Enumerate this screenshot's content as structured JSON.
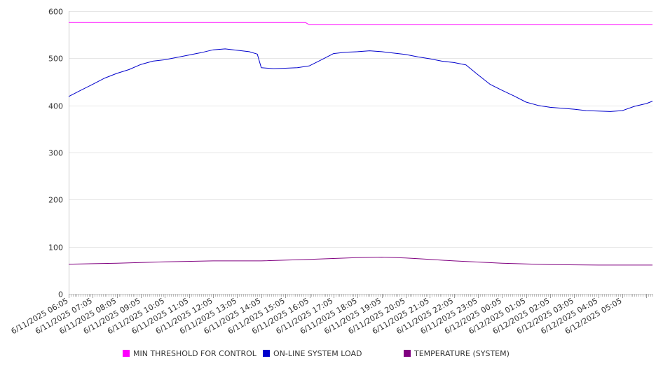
{
  "chart_data": {
    "type": "line",
    "title": "",
    "xlabel": "",
    "ylabel": "",
    "ylim": [
      0,
      600
    ],
    "yticks": [
      0,
      100,
      200,
      300,
      400,
      500,
      600
    ],
    "grid": true,
    "legend_position": "bottom",
    "x_tick_labels": [
      "6/11/2025 06:05",
      "6/11/2025 07:05",
      "6/11/2025 08:05",
      "6/11/2025 09:05",
      "6/11/2025 10:05",
      "6/11/2025 11:05",
      "6/11/2025 12:05",
      "6/11/2025 13:05",
      "6/11/2025 14:05",
      "6/11/2025 15:05",
      "6/11/2025 16:05",
      "6/11/2025 17:05",
      "6/11/2025 18:05",
      "6/11/2025 19:05",
      "6/11/2025 20:05",
      "6/11/2025 21:05",
      "6/11/2025 22:05",
      "6/11/2025 23:05",
      "6/12/2025 00:05",
      "6/12/2025 01:05",
      "6/12/2025 02:05",
      "6/12/2025 03:05",
      "6/12/2025 04:05",
      "6/12/2025 05:05"
    ],
    "x_start": "6/11/2025 06:05",
    "x_end": "6/12/2025 06:20",
    "series": [
      {
        "name": "MIN THRESHOLD FOR CONTROL",
        "color": "#ff00ff",
        "points": [
          [
            "6/11/2025 06:05",
            576
          ],
          [
            "6/11/2025 15:55",
            576
          ],
          [
            "6/11/2025 16:05",
            571
          ],
          [
            "6/12/2025 06:20",
            571
          ]
        ]
      },
      {
        "name": "ON-LINE SYSTEM LOAD",
        "color": "#0000cc",
        "points": [
          [
            "6/11/2025 06:05",
            419
          ],
          [
            "6/11/2025 06:35",
            432
          ],
          [
            "6/11/2025 07:05",
            445
          ],
          [
            "6/11/2025 07:35",
            458
          ],
          [
            "6/11/2025 08:05",
            468
          ],
          [
            "6/11/2025 08:35",
            476
          ],
          [
            "6/11/2025 09:05",
            487
          ],
          [
            "6/11/2025 09:35",
            494
          ],
          [
            "6/11/2025 10:05",
            497
          ],
          [
            "6/11/2025 10:35",
            502
          ],
          [
            "6/11/2025 11:05",
            507
          ],
          [
            "6/11/2025 11:35",
            512
          ],
          [
            "6/11/2025 12:05",
            518
          ],
          [
            "6/11/2025 12:35",
            520
          ],
          [
            "6/11/2025 13:05",
            517
          ],
          [
            "6/11/2025 13:35",
            514
          ],
          [
            "6/11/2025 13:55",
            509
          ],
          [
            "6/11/2025 14:05",
            480
          ],
          [
            "6/11/2025 14:35",
            478
          ],
          [
            "6/11/2025 15:05",
            479
          ],
          [
            "6/11/2025 15:35",
            480
          ],
          [
            "6/11/2025 16:05",
            484
          ],
          [
            "6/11/2025 16:35",
            497
          ],
          [
            "6/11/2025 17:05",
            510
          ],
          [
            "6/11/2025 17:35",
            513
          ],
          [
            "6/11/2025 18:05",
            514
          ],
          [
            "6/11/2025 18:35",
            516
          ],
          [
            "6/11/2025 19:05",
            514
          ],
          [
            "6/11/2025 19:35",
            511
          ],
          [
            "6/11/2025 20:05",
            508
          ],
          [
            "6/11/2025 20:35",
            503
          ],
          [
            "6/11/2025 21:05",
            499
          ],
          [
            "6/11/2025 21:35",
            494
          ],
          [
            "6/11/2025 22:05",
            491
          ],
          [
            "6/11/2025 22:35",
            486
          ],
          [
            "6/11/2025 23:05",
            465
          ],
          [
            "6/11/2025 23:35",
            445
          ],
          [
            "6/12/2025 00:05",
            432
          ],
          [
            "6/12/2025 00:35",
            420
          ],
          [
            "6/12/2025 01:05",
            407
          ],
          [
            "6/12/2025 01:35",
            400
          ],
          [
            "6/12/2025 02:05",
            396
          ],
          [
            "6/12/2025 02:35",
            394
          ],
          [
            "6/12/2025 03:05",
            392
          ],
          [
            "6/12/2025 03:35",
            389
          ],
          [
            "6/12/2025 04:05",
            388
          ],
          [
            "6/12/2025 04:35",
            387
          ],
          [
            "6/12/2025 05:05",
            389
          ],
          [
            "6/12/2025 05:35",
            398
          ],
          [
            "6/12/2025 06:05",
            404
          ],
          [
            "6/12/2025 06:20",
            409
          ]
        ]
      },
      {
        "name": "TEMPERATURE (SYSTEM)",
        "color": "#800080",
        "points": [
          [
            "6/11/2025 06:05",
            63
          ],
          [
            "6/11/2025 08:05",
            65
          ],
          [
            "6/11/2025 10:05",
            68
          ],
          [
            "6/11/2025 12:05",
            70
          ],
          [
            "6/11/2025 14:05",
            70
          ],
          [
            "6/11/2025 16:05",
            73
          ],
          [
            "6/11/2025 18:05",
            77
          ],
          [
            "6/11/2025 19:05",
            78
          ],
          [
            "6/11/2025 20:05",
            76
          ],
          [
            "6/11/2025 21:05",
            73
          ],
          [
            "6/11/2025 22:05",
            70
          ],
          [
            "6/12/2025 00:05",
            65
          ],
          [
            "6/12/2025 02:05",
            62
          ],
          [
            "6/12/2025 04:05",
            61
          ],
          [
            "6/12/2025 06:20",
            61
          ]
        ]
      }
    ]
  }
}
